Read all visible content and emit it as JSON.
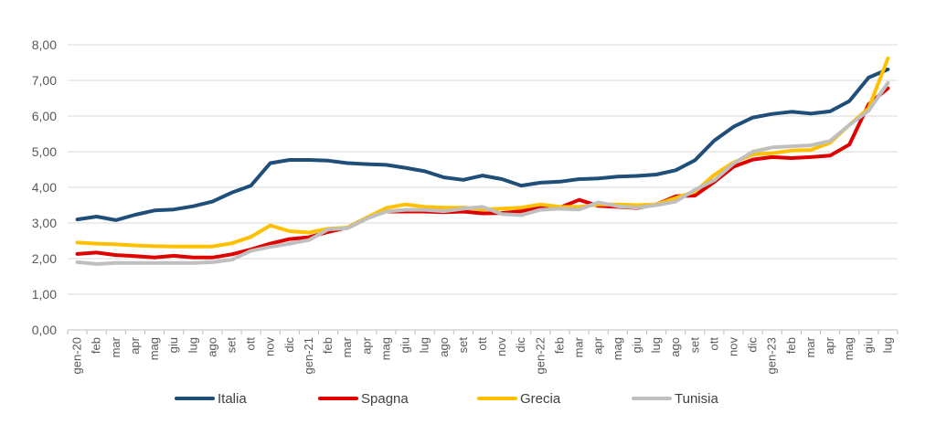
{
  "chart_data": {
    "type": "line",
    "title": "",
    "xlabel": "",
    "ylabel": "",
    "ylim": [
      0,
      8
    ],
    "y_ticks": [
      "0,00",
      "1,00",
      "2,00",
      "3,00",
      "4,00",
      "5,00",
      "6,00",
      "7,00",
      "8,00"
    ],
    "grid": true,
    "legend_position": "bottom",
    "categories": [
      "gen-20",
      "feb",
      "mar",
      "apr",
      "mag",
      "giu",
      "lug",
      "ago",
      "set",
      "ott",
      "nov",
      "dic",
      "gen-21",
      "feb",
      "mar",
      "apr",
      "mag",
      "giu",
      "lug",
      "ago",
      "set",
      "ott",
      "nov",
      "dic",
      "gen-22",
      "feb",
      "mar",
      "apr",
      "mag",
      "giu",
      "lug",
      "ago",
      "set",
      "ott",
      "nov",
      "dic",
      "gen-23",
      "feb",
      "mar",
      "apr",
      "mag",
      "giu",
      "lug"
    ],
    "series": [
      {
        "name": "Italia",
        "color": "#1f4e79",
        "values": [
          3.1,
          3.18,
          3.08,
          3.23,
          3.35,
          3.38,
          3.47,
          3.6,
          3.85,
          4.05,
          4.68,
          4.77,
          4.77,
          4.75,
          4.68,
          4.65,
          4.63,
          4.55,
          4.45,
          4.28,
          4.21,
          4.33,
          4.23,
          4.05,
          4.13,
          4.16,
          4.23,
          4.25,
          4.3,
          4.32,
          4.36,
          4.48,
          4.76,
          5.31,
          5.7,
          5.96,
          6.06,
          6.12,
          6.07,
          6.13,
          6.42,
          7.08,
          7.31
        ]
      },
      {
        "name": "Spagna",
        "color": "#e00000",
        "values": [
          2.13,
          2.17,
          2.1,
          2.07,
          2.03,
          2.08,
          2.03,
          2.03,
          2.12,
          2.26,
          2.42,
          2.55,
          2.6,
          2.75,
          2.87,
          3.15,
          3.32,
          3.32,
          3.32,
          3.3,
          3.32,
          3.27,
          3.28,
          3.33,
          3.45,
          3.43,
          3.65,
          3.48,
          3.45,
          3.42,
          3.52,
          3.75,
          3.77,
          4.15,
          4.58,
          4.78,
          4.85,
          4.82,
          4.85,
          4.89,
          5.2,
          6.33,
          6.78
        ]
      },
      {
        "name": "Grecia",
        "color": "#ffc000",
        "values": [
          2.45,
          2.42,
          2.4,
          2.37,
          2.35,
          2.34,
          2.34,
          2.34,
          2.43,
          2.61,
          2.93,
          2.77,
          2.73,
          2.84,
          2.87,
          3.15,
          3.42,
          3.52,
          3.45,
          3.43,
          3.43,
          3.38,
          3.4,
          3.43,
          3.52,
          3.45,
          3.45,
          3.52,
          3.52,
          3.5,
          3.52,
          3.7,
          3.88,
          4.35,
          4.7,
          4.92,
          4.96,
          5.03,
          5.05,
          5.25,
          5.75,
          6.22,
          7.62
        ]
      },
      {
        "name": "Tunisia",
        "color": "#bfbfbf",
        "values": [
          1.9,
          1.85,
          1.88,
          1.88,
          1.88,
          1.88,
          1.88,
          1.9,
          1.97,
          2.22,
          2.33,
          2.42,
          2.52,
          2.82,
          2.85,
          3.12,
          3.32,
          3.37,
          3.37,
          3.33,
          3.4,
          3.45,
          3.25,
          3.22,
          3.37,
          3.4,
          3.38,
          3.58,
          3.47,
          3.43,
          3.5,
          3.6,
          3.93,
          4.2,
          4.67,
          5.0,
          5.12,
          5.15,
          5.18,
          5.3,
          5.75,
          6.15,
          6.93
        ]
      }
    ]
  }
}
